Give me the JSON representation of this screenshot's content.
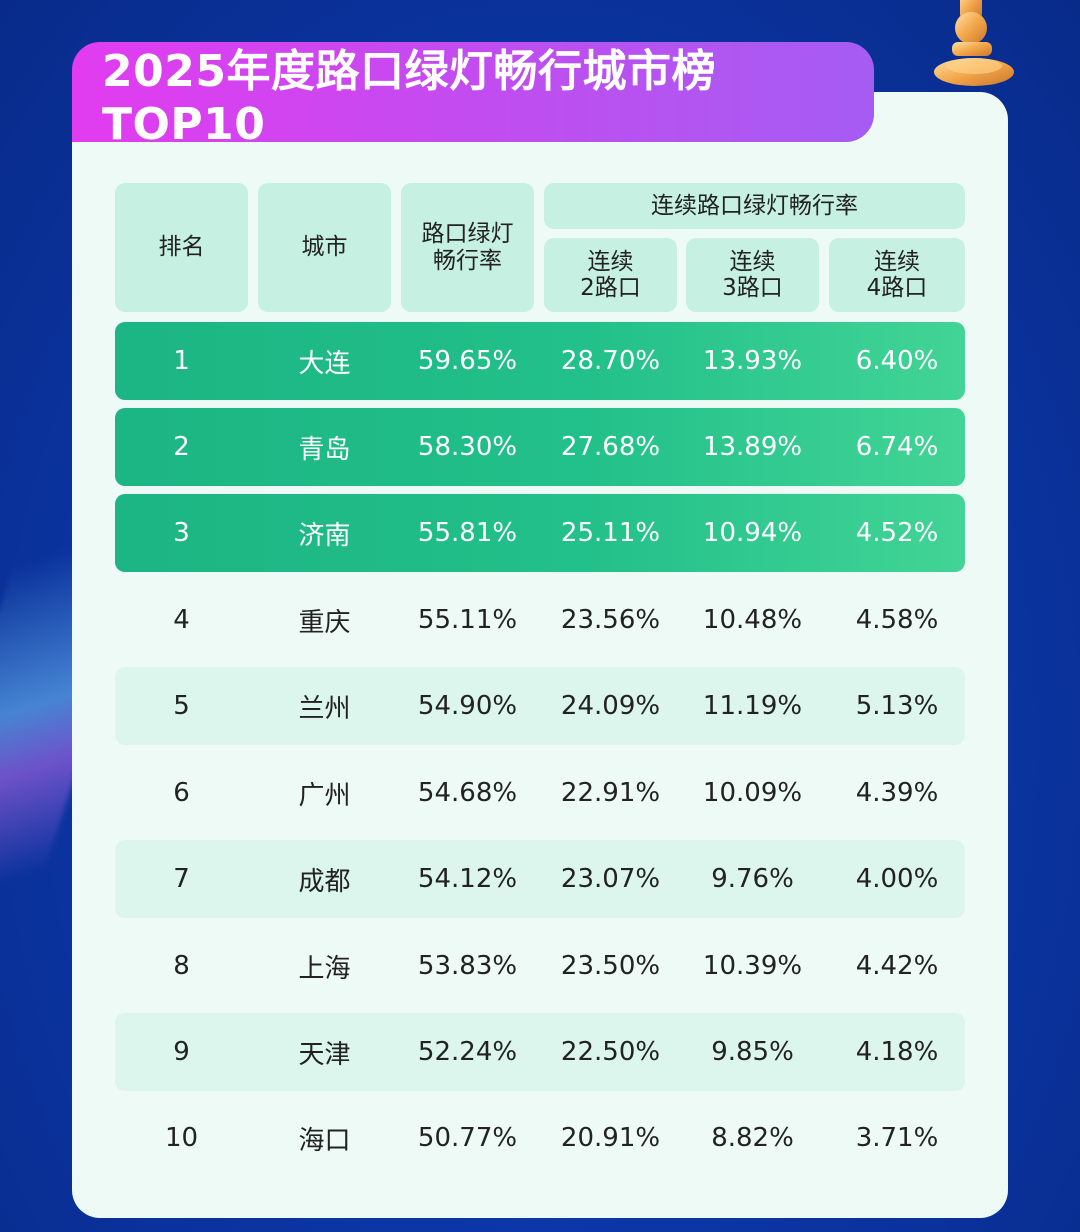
{
  "title": "2025年度路口绿灯畅行城市榜TOP10",
  "chart_data": {
    "type": "table",
    "title": "2025年度路口绿灯畅行城市榜TOP10",
    "headers": {
      "rank": "排名",
      "city": "城市",
      "rate": "路口绿灯\n畅行率",
      "group": "连续路口绿灯畅行率",
      "c2": "连续\n2路口",
      "c3": "连续\n3路口",
      "c4": "连续\n4路口"
    },
    "rows": [
      {
        "rank": "1",
        "city": "大连",
        "rate": "59.65%",
        "c2": "28.70%",
        "c3": "13.93%",
        "c4": "6.40%"
      },
      {
        "rank": "2",
        "city": "青岛",
        "rate": "58.30%",
        "c2": "27.68%",
        "c3": "13.89%",
        "c4": "6.74%"
      },
      {
        "rank": "3",
        "city": "济南",
        "rate": "55.81%",
        "c2": "25.11%",
        "c3": "10.94%",
        "c4": "4.52%"
      },
      {
        "rank": "4",
        "city": "重庆",
        "rate": "55.11%",
        "c2": "23.56%",
        "c3": "10.48%",
        "c4": "4.58%"
      },
      {
        "rank": "5",
        "city": "兰州",
        "rate": "54.90%",
        "c2": "24.09%",
        "c3": "11.19%",
        "c4": "5.13%"
      },
      {
        "rank": "6",
        "city": "广州",
        "rate": "54.68%",
        "c2": "22.91%",
        "c3": "10.09%",
        "c4": "4.39%"
      },
      {
        "rank": "7",
        "city": "成都",
        "rate": "54.12%",
        "c2": "23.07%",
        "c3": "9.76%",
        "c4": "4.00%"
      },
      {
        "rank": "8",
        "city": "上海",
        "rate": "53.83%",
        "c2": "23.50%",
        "c3": "10.39%",
        "c4": "4.42%"
      },
      {
        "rank": "9",
        "city": "天津",
        "rate": "52.24%",
        "c2": "22.50%",
        "c3": "9.85%",
        "c4": "4.18%"
      },
      {
        "rank": "10",
        "city": "海口",
        "rate": "50.77%",
        "c2": "20.91%",
        "c3": "8.82%",
        "c4": "3.71%"
      }
    ]
  },
  "colors": {
    "background": "#0c37a8",
    "title_gradient_start": "#e23cf0",
    "title_gradient_end": "#a55cf2",
    "top3_row": "#22c08a",
    "header_cell": "#c6f0e2",
    "stripe_row": "#dcf6ee",
    "card": "#eefaf6"
  },
  "decorations": {
    "trophy": "trophy-icon",
    "light_streak": "light-streak"
  }
}
